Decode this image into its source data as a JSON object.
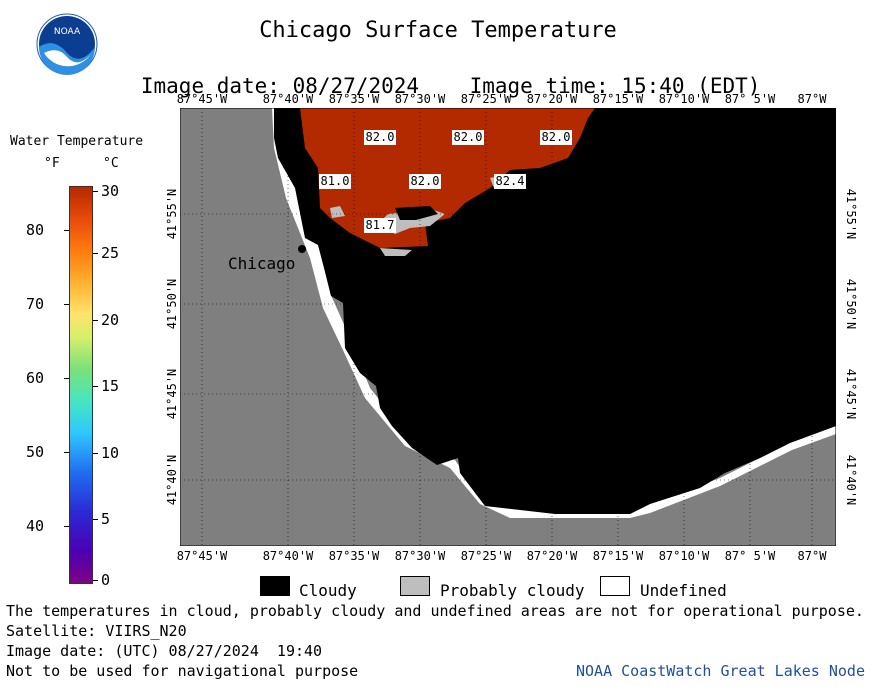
{
  "header": {
    "title": "Chicago Surface Temperature",
    "subtitle_date": "Image date: 08/27/2024",
    "subtitle_time": "Image time: 15:40 (EDT)",
    "logo_text": "NOAA"
  },
  "scale": {
    "title": "Water Temperature",
    "unit_f": "°F",
    "unit_c": "°C",
    "f_ticks": [
      "80",
      "70",
      "60",
      "50",
      "40"
    ],
    "c_ticks": [
      "30",
      "25",
      "20",
      "15",
      "10",
      "5",
      "0"
    ]
  },
  "axes": {
    "lon_labels": [
      "87°45'W",
      "87°40'W",
      "87°35'W",
      "87°30'W",
      "87°25'W",
      "87°20'W",
      "87°15'W",
      "87°10'W",
      "87° 5'W",
      "87°W"
    ],
    "lat_labels": [
      "41°55'N",
      "41°50'N",
      "41°45'N",
      "41°40'N"
    ]
  },
  "map": {
    "city_label": "Chicago",
    "temp_labels": [
      "82.0",
      "82.0",
      "82.0",
      "81.0",
      "82.0",
      "82.4",
      "81.7"
    ],
    "colors": {
      "land": "#7f7f7f",
      "cloudy": "#000000",
      "probably_cloudy": "#bebebe",
      "undefined": "#ffffff",
      "warm_water": "#b32a00"
    }
  },
  "legend": {
    "cloudy": "Cloudy",
    "probably_cloudy": "Probably cloudy",
    "undefined": "Undefined"
  },
  "footer": {
    "note1": "The temperatures in cloud, probably cloudy and undefined areas are not for operational purpose.",
    "satellite": "Satellite: VIIRS_N20",
    "utc": "Image date: (UTC) 08/27/2024  19:40",
    "nav": "Not to be used for navigational purpose",
    "credit": "NOAA CoastWatch Great Lakes Node"
  }
}
